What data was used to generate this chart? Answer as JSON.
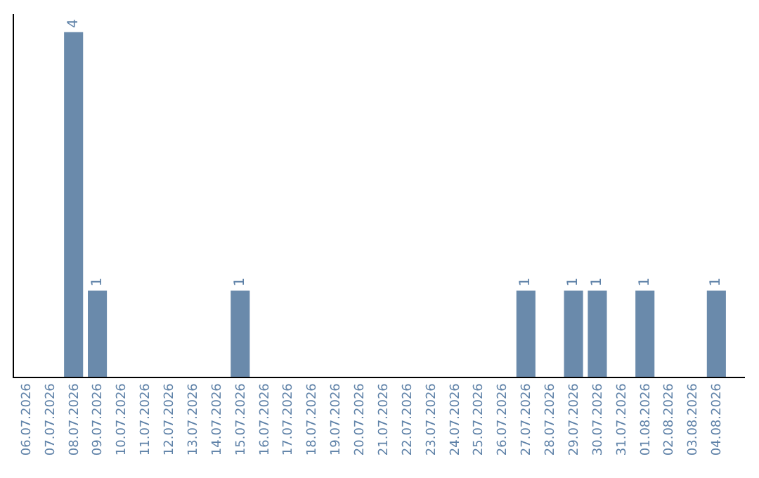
{
  "chart_data": {
    "type": "bar",
    "categories": [
      "06.07.2026",
      "07.07.2026",
      "08.07.2026",
      "09.07.2026",
      "10.07.2026",
      "11.07.2026",
      "12.07.2026",
      "13.07.2026",
      "14.07.2026",
      "15.07.2026",
      "16.07.2026",
      "17.07.2026",
      "18.07.2026",
      "19.07.2026",
      "20.07.2026",
      "21.07.2026",
      "22.07.2026",
      "23.07.2026",
      "24.07.2026",
      "25.07.2026",
      "26.07.2026",
      "27.07.2026",
      "28.07.2026",
      "29.07.2026",
      "30.07.2026",
      "31.07.2026",
      "01.08.2026",
      "02.08.2026",
      "03.08.2026",
      "04.08.2026"
    ],
    "values": [
      0,
      0,
      4,
      1,
      0,
      0,
      0,
      0,
      0,
      1,
      0,
      0,
      0,
      0,
      0,
      0,
      0,
      0,
      0,
      0,
      0,
      1,
      0,
      1,
      1,
      0,
      1,
      0,
      0,
      1
    ],
    "value_labels": [
      null,
      null,
      "4",
      "1",
      null,
      null,
      null,
      null,
      null,
      "1",
      null,
      null,
      null,
      null,
      null,
      null,
      null,
      null,
      null,
      null,
      null,
      "1",
      null,
      "1",
      "1",
      null,
      "1",
      null,
      null,
      "1"
    ],
    "color": "#6a8aab"
  }
}
